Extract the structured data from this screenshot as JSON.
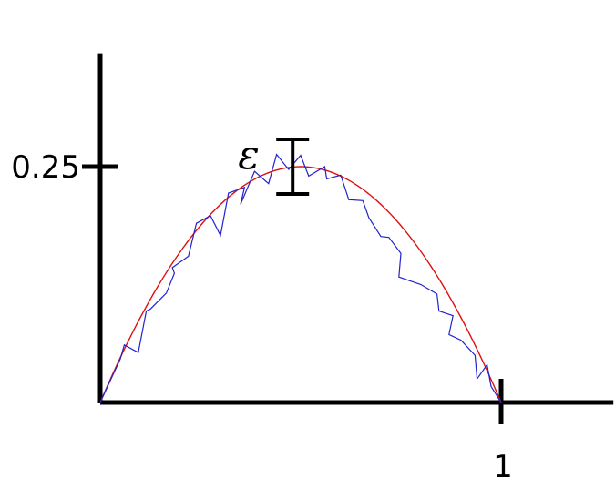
{
  "chart_data": {
    "type": "line",
    "title": "",
    "xlabel": "",
    "ylabel": "",
    "xlim": [
      0,
      1.28
    ],
    "ylim": [
      0,
      0.37
    ],
    "x_ticks": [
      {
        "value": 1,
        "label": "1"
      }
    ],
    "y_ticks": [
      {
        "value": 0.25,
        "label": "0.25"
      }
    ],
    "annotation": {
      "label": "ε",
      "x": 0.48,
      "y_low": 0.221,
      "y_high": 0.279
    },
    "curve": {
      "expression": "x*(1-x)",
      "domain": [
        0,
        1
      ],
      "color": "#dd1111"
    },
    "approximation": {
      "color": "#2222cc",
      "points": [
        [
          0.0,
          0.0
        ],
        [
          0.05,
          0.046
        ],
        [
          0.06,
          0.061
        ],
        [
          0.095,
          0.053
        ],
        [
          0.115,
          0.097
        ],
        [
          0.125,
          0.099
        ],
        [
          0.165,
          0.116
        ],
        [
          0.185,
          0.137
        ],
        [
          0.18,
          0.143
        ],
        [
          0.22,
          0.155
        ],
        [
          0.24,
          0.19
        ],
        [
          0.275,
          0.198
        ],
        [
          0.3,
          0.177
        ],
        [
          0.32,
          0.222
        ],
        [
          0.36,
          0.228
        ],
        [
          0.35,
          0.21
        ],
        [
          0.385,
          0.245
        ],
        [
          0.42,
          0.232
        ],
        [
          0.44,
          0.263
        ],
        [
          0.47,
          0.247
        ],
        [
          0.5,
          0.262
        ],
        [
          0.52,
          0.24
        ],
        [
          0.56,
          0.25
        ],
        [
          0.565,
          0.237
        ],
        [
          0.6,
          0.241
        ],
        [
          0.62,
          0.215
        ],
        [
          0.655,
          0.214
        ],
        [
          0.67,
          0.196
        ],
        [
          0.7,
          0.176
        ],
        [
          0.72,
          0.175
        ],
        [
          0.75,
          0.158
        ],
        [
          0.745,
          0.133
        ],
        [
          0.8,
          0.125
        ],
        [
          0.84,
          0.115
        ],
        [
          0.845,
          0.097
        ],
        [
          0.88,
          0.092
        ],
        [
          0.87,
          0.072
        ],
        [
          0.9,
          0.066
        ],
        [
          0.935,
          0.05
        ],
        [
          0.94,
          0.025
        ],
        [
          0.965,
          0.04
        ],
        [
          0.975,
          0.017
        ],
        [
          1.0,
          0.0
        ]
      ]
    },
    "grid": false,
    "legend": "none"
  }
}
